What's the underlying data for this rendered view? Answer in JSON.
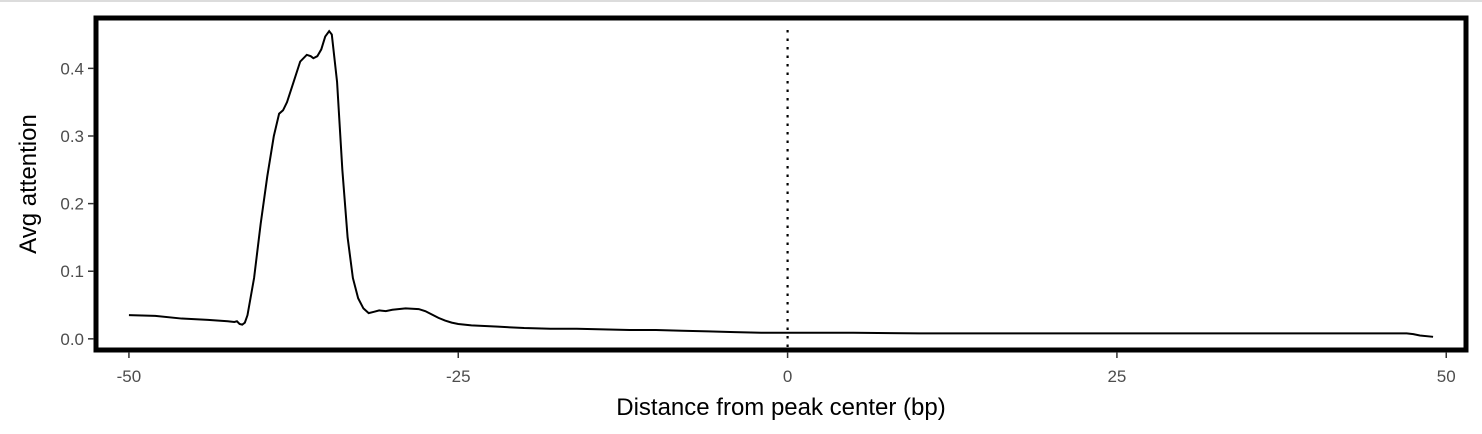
{
  "chart_data": {
    "type": "line",
    "title": "",
    "xlabel": "Distance from peak center (bp)",
    "ylabel": "Avg attention",
    "xlim": [
      -52.5,
      51.5
    ],
    "ylim": [
      -0.0165,
      0.4745
    ],
    "x_ticks": [
      -50,
      -25,
      0,
      25,
      50
    ],
    "x_tick_labels": [
      "-50",
      "-25",
      "0",
      "25",
      "50"
    ],
    "y_ticks": [
      0.0,
      0.1,
      0.2,
      0.3,
      0.4
    ],
    "y_tick_labels": [
      "0.0",
      "0.1",
      "0.2",
      "0.3",
      "0.4"
    ],
    "grid": false,
    "legend": "none",
    "reference_line": {
      "x": 0,
      "style": "dotted"
    },
    "series": [
      {
        "color": "#000000",
        "x": [
          -50,
          -48,
          -46,
          -44,
          -42.5,
          -42,
          -41.8,
          -41.6,
          -41.4,
          -41.2,
          -41,
          -40.5,
          -40,
          -39.5,
          -39,
          -38.6,
          -38.3,
          -38,
          -37.5,
          -37,
          -36.5,
          -36.2,
          -36,
          -35.7,
          -35.4,
          -35.1,
          -34.8,
          -34.6,
          -34.2,
          -33.8,
          -33.4,
          -33,
          -32.6,
          -32.2,
          -31.8,
          -31.4,
          -31,
          -30.5,
          -30,
          -29,
          -28,
          -27.5,
          -27,
          -26.5,
          -26,
          -25.5,
          -25,
          -24,
          -22,
          -20,
          -18,
          -16,
          -14,
          -12,
          -10,
          -8,
          -6,
          -4,
          -2,
          0,
          5,
          10,
          15,
          20,
          25,
          30,
          35,
          40,
          45,
          47,
          47.5,
          48,
          49
        ],
        "y": [
          0.035,
          0.034,
          0.03,
          0.028,
          0.026,
          0.025,
          0.026,
          0.022,
          0.021,
          0.024,
          0.035,
          0.09,
          0.17,
          0.24,
          0.3,
          0.333,
          0.338,
          0.35,
          0.38,
          0.41,
          0.42,
          0.418,
          0.415,
          0.418,
          0.428,
          0.447,
          0.455,
          0.45,
          0.38,
          0.25,
          0.15,
          0.09,
          0.06,
          0.045,
          0.038,
          0.04,
          0.042,
          0.041,
          0.043,
          0.045,
          0.044,
          0.041,
          0.036,
          0.031,
          0.027,
          0.024,
          0.022,
          0.02,
          0.018,
          0.016,
          0.015,
          0.015,
          0.014,
          0.013,
          0.013,
          0.012,
          0.011,
          0.01,
          0.009,
          0.009,
          0.009,
          0.008,
          0.008,
          0.008,
          0.008,
          0.008,
          0.008,
          0.008,
          0.008,
          0.008,
          0.007,
          0.005,
          0.003
        ]
      }
    ]
  }
}
